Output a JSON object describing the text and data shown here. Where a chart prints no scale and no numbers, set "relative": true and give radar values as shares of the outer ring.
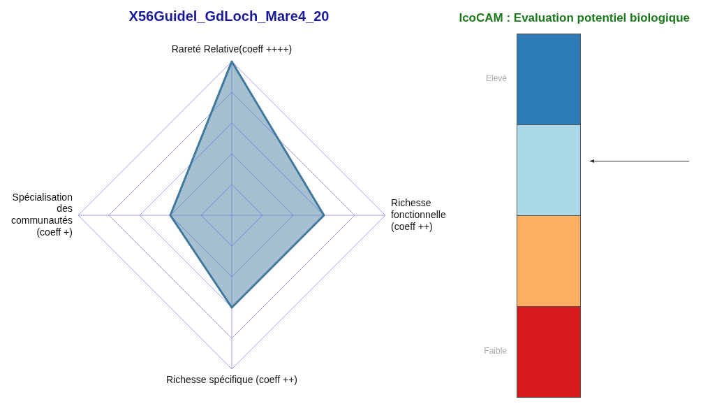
{
  "chart_data": [
    {
      "type": "radar",
      "title": "X56Guidel_GdLoch_Mare4_20",
      "categories": [
        "Rareté Relative(coeff ++++)",
        "Richesse fonctionnelle (coeff ++)",
        "Richesse spécifique (coeff ++)",
        "Spécialisation des communautés (coeff +)"
      ],
      "relative": true,
      "grid": true,
      "legend": false,
      "marker": "none",
      "series": [
        {
          "color": "#41799c",
          "values": [
            1,
            0.6,
            0.6,
            0.4
          ]
        }
      ]
    },
    {
      "type": "other",
      "title": "IcoCAM : Evaluation potentiel biologique",
      "annotations": [
        "Elevé",
        "Faible"
      ]
    }
  ]
}
